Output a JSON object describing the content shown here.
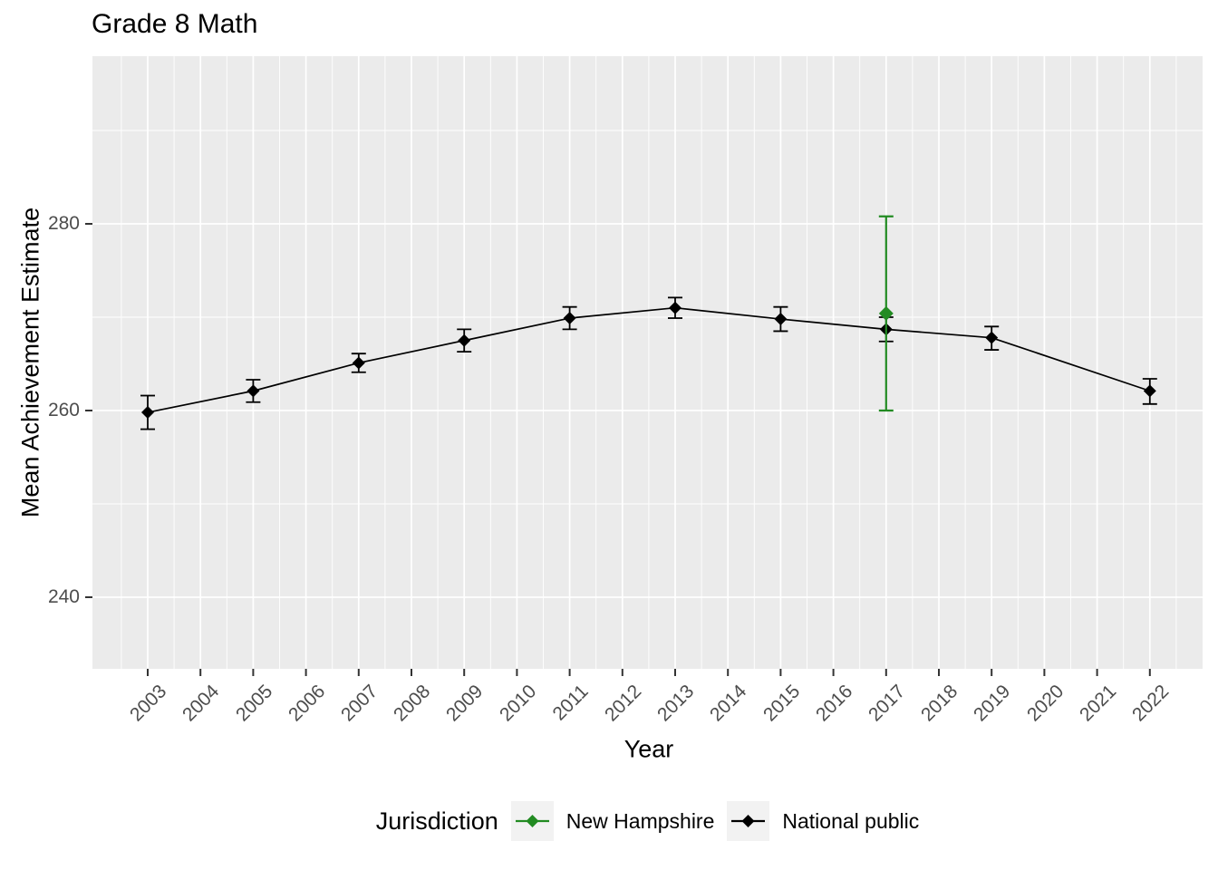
{
  "title": "Grade 8 Math",
  "axes": {
    "x_label": "Year",
    "y_label": "Mean Achievement Estimate"
  },
  "legend": {
    "title": "Jurisdiction",
    "items": [
      {
        "label": "New Hampshire",
        "color": "#228B22"
      },
      {
        "label": "National public",
        "color": "#000000"
      }
    ]
  },
  "colors": {
    "panel_background": "#EBEBEB",
    "gridline": "#FFFFFF",
    "tick_mark": "#333333",
    "tick_label": "#4D4D4D",
    "legend_key_background": "#F2F2F2",
    "new_hampshire_green": "#228B22",
    "national_public_black": "#000000"
  },
  "chart_data": {
    "type": "line",
    "title": "Grade 8 Math",
    "xlabel": "Year",
    "ylabel": "Mean Achievement Estimate",
    "grid": true,
    "legend_position": "bottom",
    "x_ticks": [
      2003,
      2004,
      2005,
      2006,
      2007,
      2008,
      2009,
      2010,
      2011,
      2012,
      2013,
      2014,
      2015,
      2016,
      2017,
      2018,
      2019,
      2020,
      2021,
      2022
    ],
    "y_ticks": [
      240,
      260,
      280
    ],
    "y_minor_ticks": [
      250,
      270,
      290
    ],
    "x_minor_positions": [
      2002.5,
      2003.5,
      2004.5,
      2005.5,
      2006.5,
      2007.5,
      2008.5,
      2009.5,
      2010.5,
      2011.5,
      2012.5,
      2013.5,
      2014.5,
      2015.5,
      2016.5,
      2017.5,
      2018.5,
      2019.5,
      2020.5,
      2021.5,
      2022.5
    ],
    "xlim": [
      2002,
      2023
    ],
    "ylim": [
      232.3,
      298.0
    ],
    "marker": "diamond",
    "error_bars": true,
    "series": [
      {
        "name": "National public",
        "color": "#000000",
        "connected": true,
        "x": [
          2003,
          2005,
          2007,
          2009,
          2011,
          2013,
          2015,
          2017,
          2019,
          2022
        ],
        "y": [
          259.8,
          262.1,
          265.1,
          267.5,
          269.9,
          271.0,
          269.8,
          268.7,
          267.8,
          262.1
        ],
        "ci_low": [
          258.0,
          260.9,
          264.1,
          266.3,
          268.7,
          269.9,
          268.5,
          267.4,
          266.5,
          260.7
        ],
        "ci_high": [
          261.6,
          263.3,
          266.1,
          268.7,
          271.1,
          272.1,
          271.1,
          270.0,
          269.0,
          263.4
        ]
      },
      {
        "name": "New Hampshire",
        "color": "#228B22",
        "connected": false,
        "x": [
          2017
        ],
        "y": [
          270.4
        ],
        "ci_low": [
          260.0
        ],
        "ci_high": [
          280.8
        ]
      }
    ]
  }
}
